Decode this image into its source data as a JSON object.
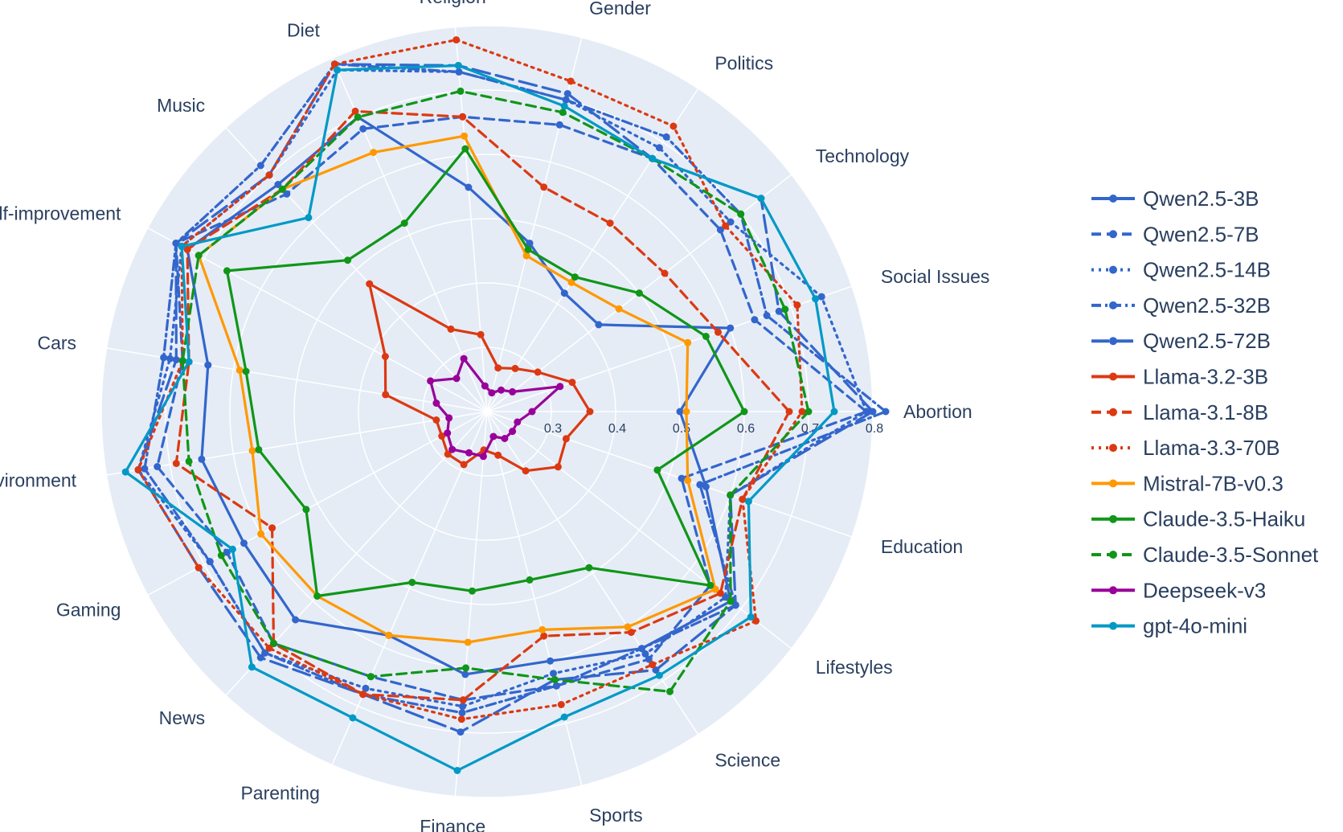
{
  "chart_data": {
    "type": "radar",
    "radial_axis": {
      "range": [
        0.2,
        0.8
      ],
      "tickvals": [
        0.3,
        0.4,
        0.5,
        0.6,
        0.7,
        0.8
      ],
      "ticklabels": [
        "0.3",
        "0.4",
        "0.5",
        "0.6",
        "0.7",
        "0.8"
      ]
    },
    "grid": true,
    "legend_position": "right",
    "categories": [
      "Abortion",
      "Social Issues",
      "Technology",
      "Politics",
      "Gender",
      "Religion",
      "Diet",
      "Music",
      "Self-improvement",
      "Cars",
      "Environment",
      "Gaming",
      "News",
      "Parenting",
      "Finance",
      "Sports",
      "Science",
      "Lifestyles",
      "Education"
    ],
    "series": [
      {
        "name": "Qwen2.5-3B",
        "color": "#3366cc",
        "dash": "solid",
        "values": [
          0.5,
          0.6,
          0.42,
          0.42,
          0.47,
          0.55,
          0.7,
          0.68,
          0.73,
          0.64,
          0.65,
          0.63,
          0.64,
          0.58,
          0.61,
          0.6,
          0.64,
          0.68,
          0.56
        ]
      },
      {
        "name": "Qwen2.5-7B",
        "color": "#3366cc",
        "dash": "dash",
        "values": [
          0.79,
          0.64,
          0.66,
          0.67,
          0.66,
          0.66,
          0.68,
          0.66,
          0.75,
          0.68,
          0.72,
          0.66,
          0.69,
          0.65,
          0.65,
          0.64,
          0.66,
          0.64,
          0.52
        ]
      },
      {
        "name": "Qwen2.5-14B",
        "color": "#3366cc",
        "dash": "dot",
        "values": [
          0.79,
          0.75,
          0.68,
          0.69,
          0.7,
          0.73,
          0.78,
          0.7,
          0.74,
          0.7,
          0.75,
          0.69,
          0.71,
          0.67,
          0.66,
          0.62,
          0.65,
          0.67,
          0.6
        ]
      },
      {
        "name": "Qwen2.5-32B",
        "color": "#3366cc",
        "dash": "dashdot",
        "values": [
          0.82,
          0.66,
          0.7,
          0.71,
          0.7,
          0.73,
          0.79,
          0.72,
          0.75,
          0.71,
          0.74,
          0.69,
          0.71,
          0.68,
          0.67,
          0.64,
          0.64,
          0.69,
          0.55
        ]
      },
      {
        "name": "Qwen2.5-72B",
        "color": "#3366cc",
        "dash": "longdash",
        "values": [
          0.8,
          0.68,
          0.74,
          0.67,
          0.71,
          0.74,
          0.79,
          0.7,
          0.75,
          0.69,
          0.75,
          0.71,
          0.72,
          0.68,
          0.7,
          0.63,
          0.68,
          0.69,
          0.6
        ]
      },
      {
        "name": "Llama-3.2-3B",
        "color": "#dc3912",
        "dash": "solid",
        "values": [
          0.36,
          0.34,
          0.3,
          0.28,
          0.27,
          0.32,
          0.34,
          0.47,
          0.38,
          0.36,
          0.28,
          0.28,
          0.29,
          0.29,
          0.26,
          0.27,
          0.31,
          0.34,
          0.33
        ]
      },
      {
        "name": "Llama-3.1-8B",
        "color": "#dc3912",
        "dash": "dash",
        "values": [
          0.67,
          0.58,
          0.55,
          0.55,
          0.56,
          0.66,
          0.71,
          0.67,
          0.73,
          0.67,
          0.69,
          0.58,
          0.69,
          0.68,
          0.65,
          0.56,
          0.61,
          0.66,
          0.62
        ]
      },
      {
        "name": "Llama-3.3-70B",
        "color": "#dc3912",
        "dash": "dot",
        "values": [
          0.69,
          0.71,
          0.67,
          0.73,
          0.73,
          0.78,
          0.79,
          0.7,
          0.74,
          0.68,
          0.75,
          0.71,
          0.7,
          0.68,
          0.68,
          0.67,
          0.67,
          0.73,
          0.62
        ]
      },
      {
        "name": "Mistral-7B-v0.3",
        "color": "#ff9900",
        "dash": "solid",
        "values": [
          0.51,
          0.53,
          0.46,
          0.44,
          0.45,
          0.63,
          0.64,
          0.67,
          0.71,
          0.59,
          0.57,
          0.6,
          0.59,
          0.58,
          0.56,
          0.55,
          0.6,
          0.65,
          0.53
        ]
      },
      {
        "name": "Claude-3.5-Haiku",
        "color": "#109618",
        "dash": "solid",
        "values": [
          0.6,
          0.56,
          0.5,
          0.45,
          0.46,
          0.61,
          0.52,
          0.52,
          0.66,
          0.58,
          0.56,
          0.52,
          0.59,
          0.49,
          0.48,
          0.47,
          0.49,
          0.64,
          0.48
        ]
      },
      {
        "name": "Claude-3.5-Sonnet",
        "color": "#109618",
        "dash": "dash",
        "values": [
          0.7,
          0.69,
          0.7,
          0.67,
          0.68,
          0.7,
          0.7,
          0.67,
          0.71,
          0.68,
          0.67,
          0.67,
          0.69,
          0.65,
          0.6,
          0.63,
          0.72,
          0.68,
          0.6
        ]
      },
      {
        "name": "Deepseek-v3",
        "color": "#990099",
        "dash": "solid",
        "values": [
          0.27,
          0.32,
          0.25,
          0.24,
          0.23,
          0.24,
          0.29,
          0.27,
          0.3,
          0.28,
          0.26,
          0.27,
          0.28,
          0.27,
          0.27,
          0.24,
          0.25,
          0.25,
          0.25
        ]
      },
      {
        "name": "gpt-4o-mini",
        "color": "#0099c6",
        "dash": "solid",
        "values": [
          0.74,
          0.74,
          0.74,
          0.67,
          0.69,
          0.74,
          0.78,
          0.61,
          0.74,
          0.67,
          0.77,
          0.65,
          0.74,
          0.72,
          0.76,
          0.69,
          0.69,
          0.72,
          0.63
        ]
      }
    ]
  }
}
